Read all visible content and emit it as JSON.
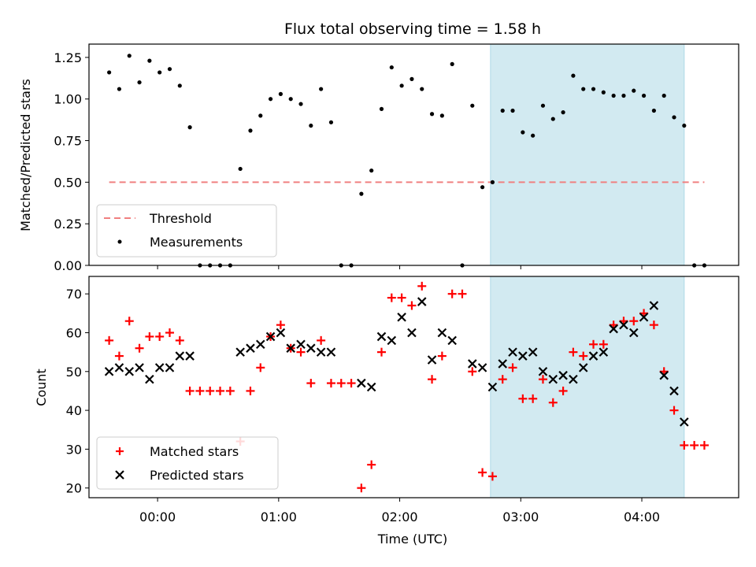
{
  "chart_data": [
    {
      "type": "scatter",
      "title": "Flux total observing time = 1.58 h",
      "ylabel": "Matched/Predicted stars",
      "ylim": [
        0,
        1.33
      ],
      "xlim": [
        "23:26",
        "04:48"
      ],
      "yticks": [
        "0.00",
        "0.25",
        "0.50",
        "0.75",
        "1.00",
        "1.25"
      ],
      "ytick_values": [
        0,
        0.25,
        0.5,
        0.75,
        1.0,
        1.25
      ],
      "shaded_region": {
        "x_start": "02:45",
        "x_end": "04:21",
        "color": "#add8e6"
      },
      "legend_position": "lower-left",
      "legend": [
        "Threshold",
        "Measurements"
      ],
      "threshold": {
        "name": "Threshold",
        "y": 0.5,
        "x_start": "23:36",
        "x_end": "04:31",
        "color": "#f08080"
      },
      "series": [
        {
          "name": "Measurements",
          "color": "#000000",
          "points": [
            [
              "23:36",
              1.16
            ],
            [
              "23:41",
              1.06
            ],
            [
              "23:46",
              1.26
            ],
            [
              "23:51",
              1.1
            ],
            [
              "23:56",
              1.23
            ],
            [
              "00:01",
              1.16
            ],
            [
              "00:06",
              1.18
            ],
            [
              "00:11",
              1.08
            ],
            [
              "00:16",
              0.83
            ],
            [
              "00:21",
              0.0
            ],
            [
              "00:26",
              0.0
            ],
            [
              "00:31",
              0.0
            ],
            [
              "00:36",
              0.0
            ],
            [
              "00:41",
              0.58
            ],
            [
              "00:46",
              0.81
            ],
            [
              "00:51",
              0.9
            ],
            [
              "00:56",
              1.0
            ],
            [
              "01:01",
              1.03
            ],
            [
              "01:06",
              1.0
            ],
            [
              "01:11",
              0.97
            ],
            [
              "01:16",
              0.84
            ],
            [
              "01:21",
              1.06
            ],
            [
              "01:26",
              0.86
            ],
            [
              "01:31",
              0.0
            ],
            [
              "01:36",
              0.0
            ],
            [
              "01:41",
              0.43
            ],
            [
              "01:46",
              0.57
            ],
            [
              "01:51",
              0.94
            ],
            [
              "01:56",
              1.19
            ],
            [
              "02:01",
              1.08
            ],
            [
              "02:06",
              1.12
            ],
            [
              "02:11",
              1.06
            ],
            [
              "02:16",
              0.91
            ],
            [
              "02:21",
              0.9
            ],
            [
              "02:26",
              1.21
            ],
            [
              "02:31",
              0.0
            ],
            [
              "02:36",
              0.96
            ],
            [
              "02:41",
              0.47
            ],
            [
              "02:46",
              0.5
            ],
            [
              "02:51",
              0.93
            ],
            [
              "02:56",
              0.93
            ],
            [
              "03:01",
              0.8
            ],
            [
              "03:06",
              0.78
            ],
            [
              "03:11",
              0.96
            ],
            [
              "03:16",
              0.88
            ],
            [
              "03:21",
              0.92
            ],
            [
              "03:26",
              1.14
            ],
            [
              "03:31",
              1.06
            ],
            [
              "03:36",
              1.06
            ],
            [
              "03:41",
              1.04
            ],
            [
              "03:46",
              1.02
            ],
            [
              "03:51",
              1.02
            ],
            [
              "03:56",
              1.05
            ],
            [
              "04:01",
              1.02
            ],
            [
              "04:06",
              0.93
            ],
            [
              "04:11",
              1.02
            ],
            [
              "04:16",
              0.89
            ],
            [
              "04:21",
              0.84
            ],
            [
              "04:26",
              0.0
            ],
            [
              "04:31",
              0.0
            ]
          ]
        }
      ]
    },
    {
      "type": "scatter",
      "xlabel": "Time (UTC)",
      "ylabel": "Count",
      "ylim": [
        17.5,
        74.5
      ],
      "xlim": [
        "23:26",
        "04:48"
      ],
      "yticks": [
        "20",
        "30",
        "40",
        "50",
        "60",
        "70"
      ],
      "ytick_values": [
        20,
        30,
        40,
        50,
        60,
        70
      ],
      "xticks": [
        "00:00",
        "01:00",
        "02:00",
        "03:00",
        "04:00"
      ],
      "shaded_region": {
        "x_start": "02:45",
        "x_end": "04:21",
        "color": "#add8e6"
      },
      "legend_position": "lower-left",
      "legend": [
        "Matched stars",
        "Predicted stars"
      ],
      "series": [
        {
          "name": "Matched stars",
          "marker": "plus",
          "color": "#ff0000",
          "points": [
            [
              "23:36",
              58
            ],
            [
              "23:41",
              54
            ],
            [
              "23:46",
              63
            ],
            [
              "23:51",
              56
            ],
            [
              "23:56",
              59
            ],
            [
              "00:01",
              59
            ],
            [
              "00:06",
              60
            ],
            [
              "00:11",
              58
            ],
            [
              "00:16",
              45
            ],
            [
              "00:21",
              45
            ],
            [
              "00:26",
              45
            ],
            [
              "00:31",
              45
            ],
            [
              "00:36",
              45
            ],
            [
              "00:41",
              32
            ],
            [
              "00:46",
              45
            ],
            [
              "00:51",
              51
            ],
            [
              "00:56",
              59
            ],
            [
              "01:01",
              62
            ],
            [
              "01:06",
              56
            ],
            [
              "01:11",
              55
            ],
            [
              "01:16",
              47
            ],
            [
              "01:21",
              58
            ],
            [
              "01:26",
              47
            ],
            [
              "01:31",
              47
            ],
            [
              "01:36",
              47
            ],
            [
              "01:41",
              20
            ],
            [
              "01:46",
              26
            ],
            [
              "01:51",
              55
            ],
            [
              "01:56",
              69
            ],
            [
              "02:01",
              69
            ],
            [
              "02:06",
              67
            ],
            [
              "02:11",
              72
            ],
            [
              "02:16",
              48
            ],
            [
              "02:21",
              54
            ],
            [
              "02:26",
              70
            ],
            [
              "02:31",
              70
            ],
            [
              "02:36",
              50
            ],
            [
              "02:41",
              24
            ],
            [
              "02:46",
              23
            ],
            [
              "02:51",
              48
            ],
            [
              "02:56",
              51
            ],
            [
              "03:01",
              43
            ],
            [
              "03:06",
              43
            ],
            [
              "03:11",
              48
            ],
            [
              "03:16",
              42
            ],
            [
              "03:21",
              45
            ],
            [
              "03:26",
              55
            ],
            [
              "03:31",
              54
            ],
            [
              "03:36",
              57
            ],
            [
              "03:41",
              57
            ],
            [
              "03:46",
              62
            ],
            [
              "03:51",
              63
            ],
            [
              "03:56",
              63
            ],
            [
              "04:01",
              65
            ],
            [
              "04:06",
              62
            ],
            [
              "04:11",
              50
            ],
            [
              "04:16",
              40
            ],
            [
              "04:21",
              31
            ],
            [
              "04:26",
              31
            ],
            [
              "04:31",
              31
            ]
          ]
        },
        {
          "name": "Predicted stars",
          "marker": "x",
          "color": "#000000",
          "points": [
            [
              "23:36",
              50
            ],
            [
              "23:41",
              51
            ],
            [
              "23:46",
              50
            ],
            [
              "23:51",
              51
            ],
            [
              "23:56",
              48
            ],
            [
              "00:01",
              51
            ],
            [
              "00:06",
              51
            ],
            [
              "00:11",
              54
            ],
            [
              "00:16",
              54
            ],
            [
              "00:41",
              55
            ],
            [
              "00:46",
              56
            ],
            [
              "00:51",
              57
            ],
            [
              "00:56",
              59
            ],
            [
              "01:01",
              60
            ],
            [
              "01:06",
              56
            ],
            [
              "01:11",
              57
            ],
            [
              "01:16",
              56
            ],
            [
              "01:21",
              55
            ],
            [
              "01:26",
              55
            ],
            [
              "01:41",
              47
            ],
            [
              "01:46",
              46
            ],
            [
              "01:51",
              59
            ],
            [
              "01:56",
              58
            ],
            [
              "02:01",
              64
            ],
            [
              "02:06",
              60
            ],
            [
              "02:11",
              68
            ],
            [
              "02:16",
              53
            ],
            [
              "02:21",
              60
            ],
            [
              "02:26",
              58
            ],
            [
              "02:36",
              52
            ],
            [
              "02:41",
              51
            ],
            [
              "02:46",
              46
            ],
            [
              "02:51",
              52
            ],
            [
              "02:56",
              55
            ],
            [
              "03:01",
              54
            ],
            [
              "03:06",
              55
            ],
            [
              "03:11",
              50
            ],
            [
              "03:16",
              48
            ],
            [
              "03:21",
              49
            ],
            [
              "03:26",
              48
            ],
            [
              "03:31",
              51
            ],
            [
              "03:36",
              54
            ],
            [
              "03:41",
              55
            ],
            [
              "03:46",
              61
            ],
            [
              "03:51",
              62
            ],
            [
              "03:56",
              60
            ],
            [
              "04:01",
              64
            ],
            [
              "04:06",
              67
            ],
            [
              "04:11",
              49
            ],
            [
              "04:16",
              45
            ],
            [
              "04:21",
              37
            ]
          ]
        }
      ]
    }
  ]
}
